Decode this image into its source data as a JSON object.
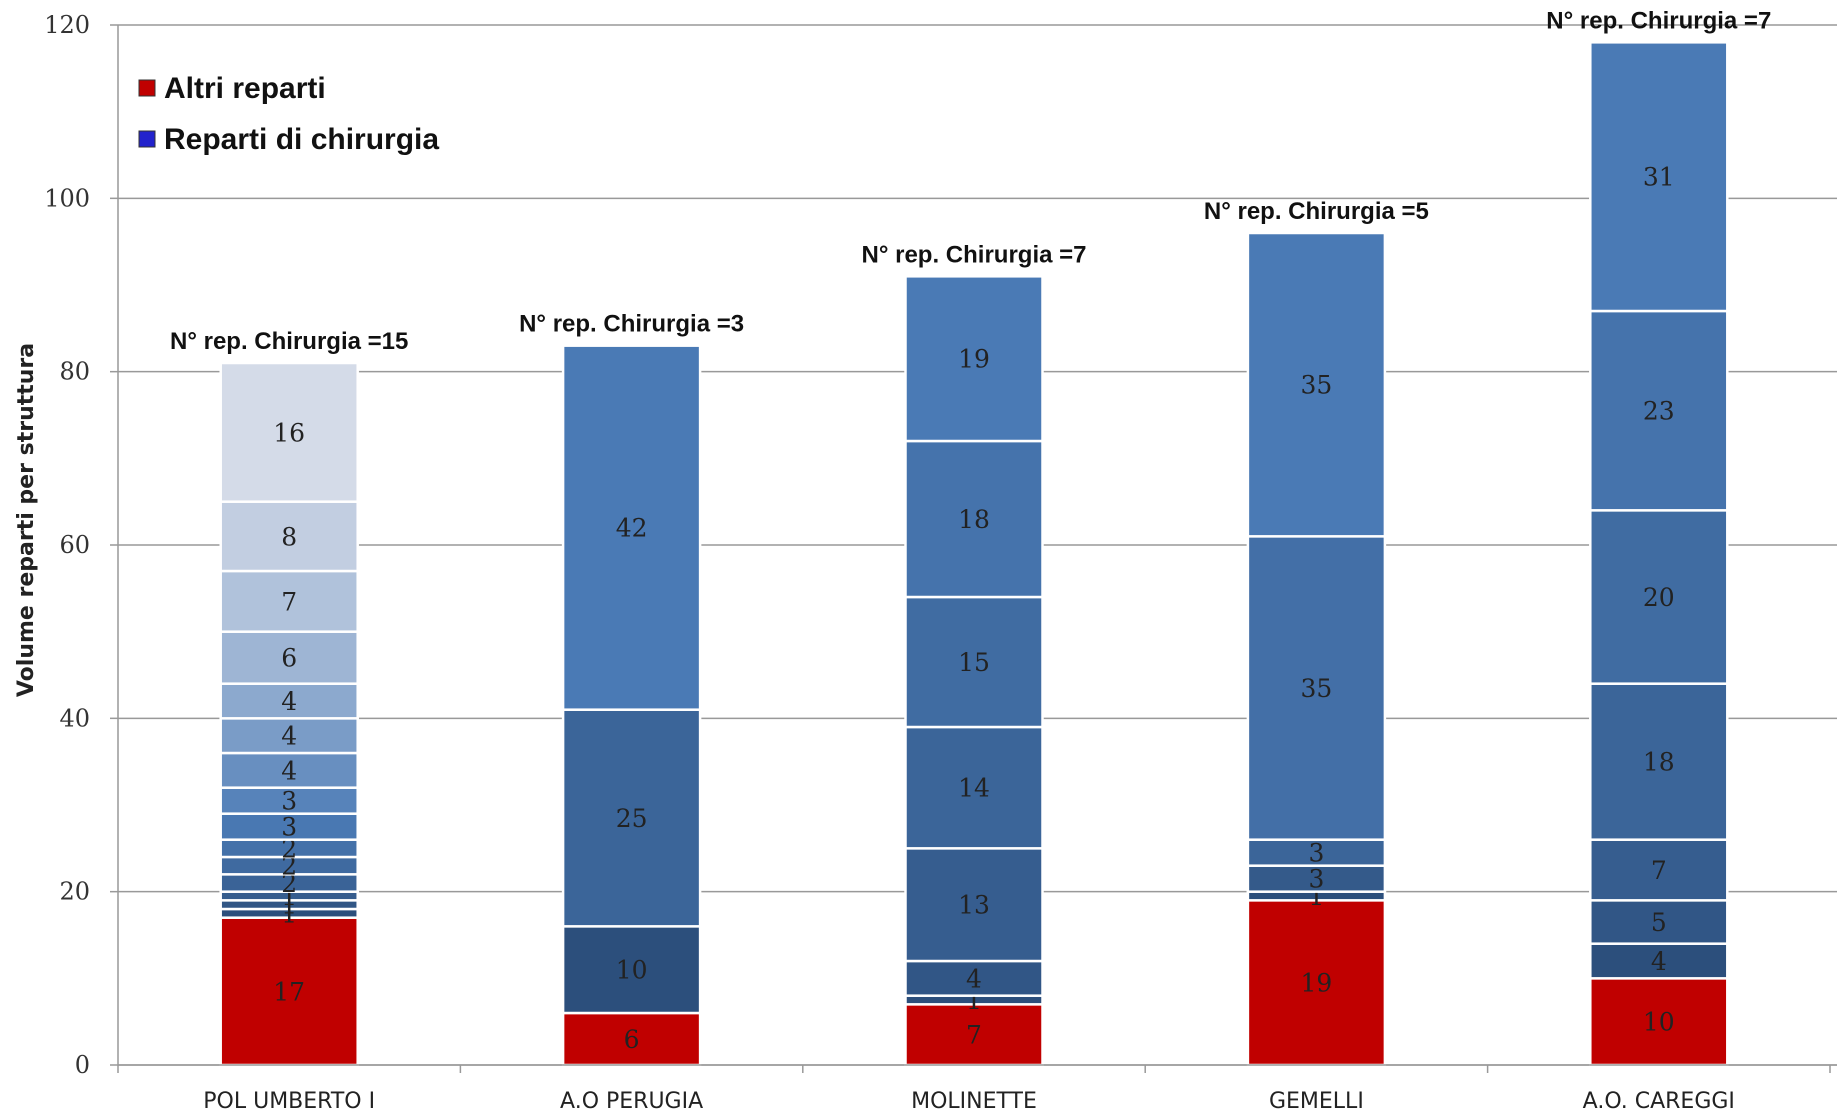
{
  "chart_data": {
    "type": "bar",
    "stacked": true,
    "ylabel": "Volume reparti per struttura",
    "xlabel": "",
    "ylim": [
      0,
      120
    ],
    "yticks": [
      0,
      20,
      40,
      60,
      80,
      100,
      120
    ],
    "grid": true,
    "legend": {
      "placement": "top-left",
      "entries": [
        {
          "name": "Altri reparti",
          "color": "#c00000"
        },
        {
          "name": "Reparti di chirurgia",
          "color": "#2222cc"
        }
      ]
    },
    "categories": [
      "POL UMBERTO I",
      "A.O PERUGIA",
      "MOLINETTE",
      "GEMELLI",
      "A.O. CAREGGI"
    ],
    "annotations": [
      "N° rep. Chirurgia =15",
      "N° rep. Chirurgia =3",
      "N° rep. Chirurgia =7",
      "N° rep. Chirurgia =5",
      "N° rep. Chirurgia =7"
    ],
    "stacks": [
      {
        "altri": 17,
        "chirurgia": [
          1,
          1,
          1,
          2,
          2,
          2,
          3,
          3,
          4,
          4,
          4,
          6,
          7,
          8,
          16
        ]
      },
      {
        "altri": 6,
        "chirurgia": [
          10,
          25,
          42
        ]
      },
      {
        "altri": 7,
        "chirurgia": [
          1,
          4,
          13,
          14,
          15,
          18,
          19
        ]
      },
      {
        "altri": 19,
        "chirurgia": [
          1,
          3,
          3,
          35,
          35
        ]
      },
      {
        "altri": 10,
        "chirurgia": [
          4,
          5,
          7,
          18,
          20,
          23,
          31
        ]
      }
    ]
  },
  "colors": {
    "altri": "#c00000",
    "chirurgia_dark": "#2c4f7c",
    "chirurgia_mid": "#4a7ab5",
    "chirurgia_light": "#d4dbe8",
    "grid": "#999999",
    "separator": "#ffffff"
  }
}
